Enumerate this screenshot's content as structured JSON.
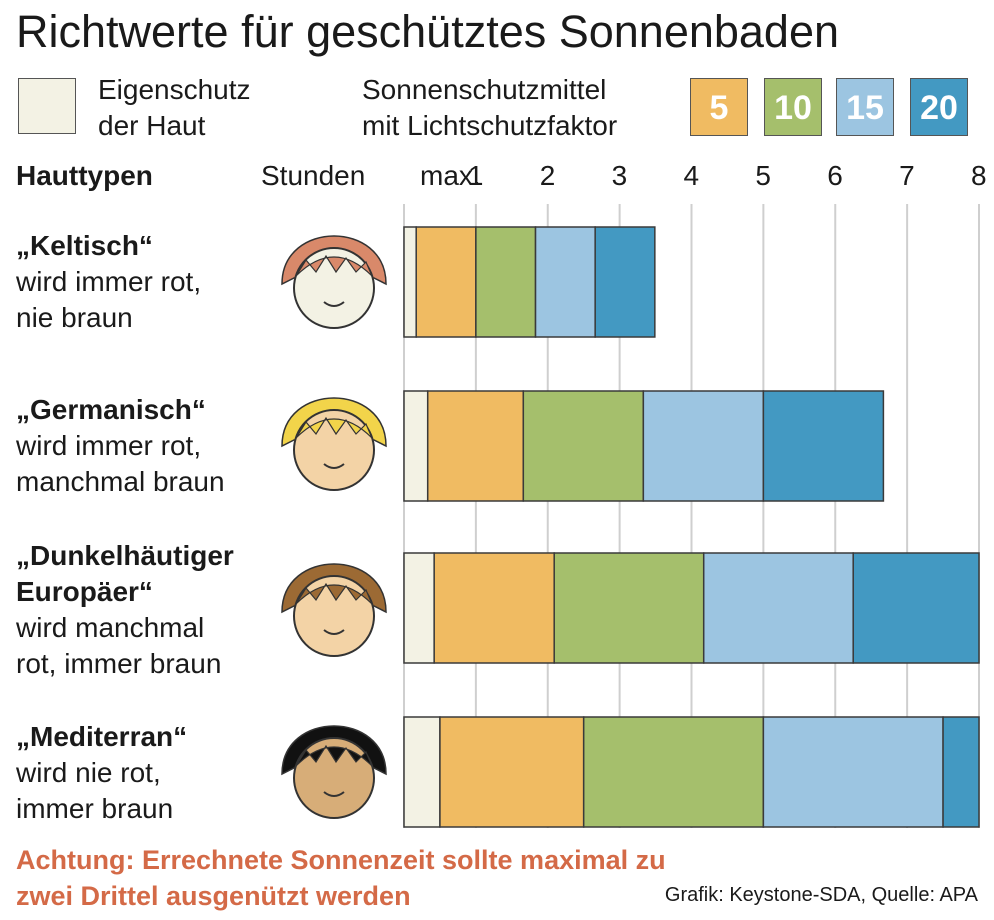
{
  "title": "Richtwerte für geschütztes Sonnenbaden",
  "legend": {
    "own_line1": "Eigenschutz",
    "own_line2": "der Haut",
    "spf_line1": "Sonnenschutzmittel",
    "spf_line2": "mit Lichtschutzfaktor",
    "spf_values": [
      "5",
      "10",
      "15",
      "20"
    ]
  },
  "header": {
    "types": "Hauttypen",
    "hours": "Stunden",
    "max": "max."
  },
  "rows": [
    {
      "name": "„Keltisch“",
      "desc": [
        "wird immer rot,",
        "nie braun"
      ]
    },
    {
      "name": "„Germanisch“",
      "desc": [
        "wird immer rot,",
        "manchmal braun"
      ]
    },
    {
      "name_lines": [
        "„Dunkelhäutiger",
        "Europäer“"
      ],
      "desc": [
        "wird manchmal",
        "rot, immer braun"
      ]
    },
    {
      "name": "„Mediterran“",
      "desc": [
        "wird nie rot,",
        "immer braun"
      ]
    }
  ],
  "warning_line1": "Achtung: Errechnete Sonnenzeit sollte maximal zu",
  "warning_line2": "zwei Drittel ausgenützt werden",
  "source": "Grafik: Keystone-SDA, Quelle: APA",
  "colors": {
    "own": "#f3f2e4",
    "spf5": "#f0bb62",
    "spf10": "#a5bf6c",
    "spf15": "#9cc5e1",
    "spf20": "#4399c2",
    "warning": "#d46a47",
    "hair": [
      "#d9896a",
      "#f2d44a",
      "#9c6a34",
      "#111111"
    ],
    "skin": [
      "#f3f2e4",
      "#f3d3a6",
      "#f3d3a6",
      "#d7ad78"
    ]
  },
  "chart_data": {
    "type": "bar",
    "orientation": "horizontal",
    "stacked": true,
    "xlabel": "Stunden",
    "x_ticks": [
      "1",
      "2",
      "3",
      "4",
      "5",
      "6",
      "7",
      "8"
    ],
    "xlim": [
      0,
      8
    ],
    "categories": [
      "„Keltisch“",
      "„Germanisch“",
      "„Dunkelhäutiger Europäer“",
      "„Mediterran“"
    ],
    "series": [
      {
        "name": "Eigenschutz der Haut",
        "values": [
          0.17,
          0.33,
          0.42,
          0.5
        ]
      },
      {
        "name": "5",
        "values": [
          0.83,
          1.33,
          1.67,
          2.0
        ]
      },
      {
        "name": "10",
        "values": [
          0.83,
          1.67,
          2.08,
          2.5
        ]
      },
      {
        "name": "15",
        "values": [
          0.83,
          1.67,
          2.08,
          2.5
        ]
      },
      {
        "name": "20",
        "values": [
          0.83,
          1.67,
          1.75,
          0.5
        ]
      }
    ],
    "grid": true
  }
}
